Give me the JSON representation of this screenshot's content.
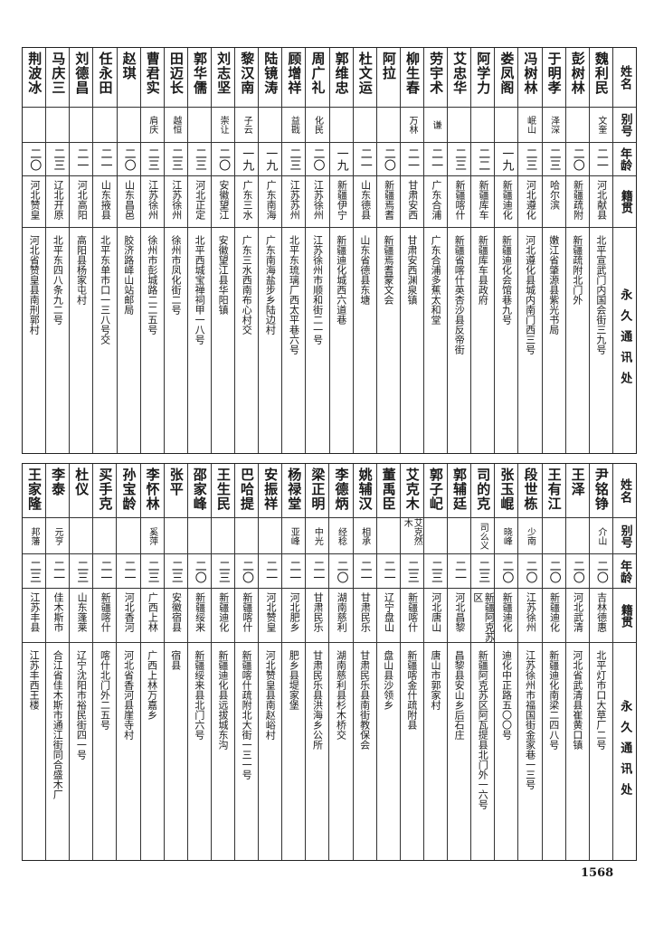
{
  "headers": {
    "name": "姓名",
    "alias": "别号",
    "age": "年龄",
    "native": "籍贯",
    "address": "永久通讯处"
  },
  "top_table": [
    {
      "name": "魏利民",
      "alias": "文奎",
      "age": "二一",
      "native": "河北献县",
      "address": "北平宣武门内国会街三九号"
    },
    {
      "name": "彭树林",
      "alias": "",
      "age": "二〇",
      "native": "新疆疏附",
      "address": "新疆疏附北门外"
    },
    {
      "name": "于明孝",
      "alias": "泽深",
      "age": "二三",
      "native": "哈尔滨",
      "address": "嫩江省肇源县紫光书局"
    },
    {
      "name": "冯树林",
      "alias": "岷山",
      "age": "二三",
      "native": "河北遵化",
      "address": "河北遵化县城内南门西三号"
    },
    {
      "name": "娄凤阁",
      "alias": "",
      "age": "一九",
      "native": "新疆迪化",
      "address": "新疆迪化会馆巷九号"
    },
    {
      "name": "阿学力",
      "alias": "",
      "age": "二二",
      "native": "新疆库车",
      "address": "新疆库车县政府"
    },
    {
      "name": "艾忠华",
      "alias": "",
      "age": "二三",
      "native": "新疆喀什",
      "address": "新疆省喀什英杏沙县反帝街"
    },
    {
      "name": "劳宇术",
      "alias": "谦",
      "age": "二一",
      "native": "广东合浦",
      "address": "广东合浦多蕉太和堂"
    },
    {
      "name": "柳生春",
      "alias": "万林",
      "age": "二一",
      "native": "甘肃安西",
      "address": "甘肃安西渊泉镇"
    },
    {
      "name": "阿拉",
      "alias": "",
      "age": "二〇",
      "native": "新疆焉耆",
      "address": "新疆焉耆蒙文会"
    },
    {
      "name": "杜文运",
      "alias": "",
      "age": "二一",
      "native": "山东德县",
      "address": "山东省德县东塘"
    },
    {
      "name": "郭维忠",
      "alias": "",
      "age": "一九",
      "native": "新疆伊宁",
      "address": "新疆迪化城西六道巷"
    },
    {
      "name": "周广礼",
      "alias": "化民",
      "age": "二〇",
      "native": "江苏徐州",
      "address": "江苏徐州市顺和街二一号"
    },
    {
      "name": "顾增祥",
      "alias": "益戡",
      "age": "二三",
      "native": "江苏苏州",
      "address": "北平东琉璃厂西太平巷六号"
    },
    {
      "name": "陆镜涛",
      "alias": "",
      "age": "一九",
      "native": "广东南海",
      "address": "广东南海盐步乡陆边村"
    },
    {
      "name": "黎汉南",
      "alias": "子云",
      "age": "一九",
      "native": "广东三水",
      "address": "广东三水西南布心村交"
    },
    {
      "name": "刘志坚",
      "alias": "崇让",
      "age": "二〇",
      "native": "安徽望江",
      "address": "安徽望江县华阳镇"
    },
    {
      "name": "郭华儒",
      "alias": "",
      "age": "二三",
      "native": "河北正定",
      "address": "北平西城宝禅祠甲一八号"
    },
    {
      "name": "田迈长",
      "alias": "越恒",
      "age": "二三",
      "native": "江苏徐州",
      "address": "徐州市凤化街二号"
    },
    {
      "name": "曹君实",
      "alias": "肩庆",
      "age": "二三",
      "native": "江苏徐州",
      "address": "徐州市彭城路二二五号"
    },
    {
      "name": "赵琪",
      "alias": "",
      "age": "二〇",
      "native": "山东昌邑",
      "address": "胶济路峄山站邮局"
    },
    {
      "name": "任永田",
      "alias": "",
      "age": "二一",
      "native": "山东掖县",
      "address": "北平东单市口一三八号交"
    },
    {
      "name": "刘德昌",
      "alias": "",
      "age": "二一",
      "native": "河北高阳",
      "address": "高阳县杨家屯村"
    },
    {
      "name": "马庆三",
      "alias": "",
      "age": "二三",
      "native": "辽北开原",
      "address": "北平东四八条九二号"
    },
    {
      "name": "荆波冰",
      "alias": "",
      "age": "二〇",
      "native": "河北赞皇",
      "address": "河北省赞皇县南刑郭村"
    }
  ],
  "bottom_table": [
    {
      "name": "尹铭铮",
      "alias": "介山",
      "age": "二〇",
      "native": "吉林德惠",
      "address": "北平灯市口大草厂二号"
    },
    {
      "name": "王泽",
      "alias": "",
      "age": "二〇",
      "native": "河北武清",
      "address": "河北省武清县崔黄口镇"
    },
    {
      "name": "王有江",
      "alias": "",
      "age": "二〇",
      "native": "新疆迪化",
      "address": "新疆迪化南梁二四八号"
    },
    {
      "name": "段世栋",
      "alias": "少南",
      "age": "二〇",
      "native": "江苏徐州",
      "address": "江苏徐州市福国街金家巷一三号"
    },
    {
      "name": "张玉崐",
      "alias": "晓峰",
      "age": "二〇",
      "native": "新疆迪化",
      "address": "迪化中正路五〇〇号"
    },
    {
      "name": "司的克",
      "alias": "司么义",
      "age": "二三",
      "native": "新疆阿克苏区",
      "address": "新疆阿克苏区阿瓦提县北门外一六号"
    },
    {
      "name": "郭辅廷",
      "alias": "",
      "age": "二一",
      "native": "河北昌黎",
      "address": "昌黎县安山乡后石庄"
    },
    {
      "name": "郭子屺",
      "alias": "",
      "age": "二三",
      "native": "河北唐山",
      "address": "唐山市郭家村"
    },
    {
      "name": "艾克木",
      "alias": "艾克然木",
      "age": "二三",
      "native": "新疆喀什",
      "address": "新疆喀金什疏附县"
    },
    {
      "name": "董禹臣",
      "alias": "",
      "age": "二一",
      "native": "辽宁盘山",
      "address": "盘山县沙领乡"
    },
    {
      "name": "姚辅汉",
      "alias": "相承",
      "age": "二一",
      "native": "甘肃民乐",
      "address": "甘肃民乐县南街教保会"
    },
    {
      "name": "李德炳",
      "alias": "经稔",
      "age": "二〇",
      "native": "湖南慈利",
      "address": "湖南慈利县杉木桥交"
    },
    {
      "name": "梁正明",
      "alias": "中光",
      "age": "二一",
      "native": "甘肃民乐",
      "address": "甘肃民乐县洪海乡公所"
    },
    {
      "name": "杨禄堂",
      "alias": "亚峰",
      "age": "二一",
      "native": "河北肥乡",
      "address": "肥乡县堤家堡"
    },
    {
      "name": "安振祥",
      "alias": "",
      "age": "二一",
      "native": "河北赞皇",
      "address": "河北赞皇县南赵峪村"
    },
    {
      "name": "巴哈提",
      "alias": "",
      "age": "二〇",
      "native": "新疆喀什",
      "address": "新疆喀什疏附北大街一三一号"
    },
    {
      "name": "王生民",
      "alias": "",
      "age": "二三",
      "native": "新疆迪化",
      "address": "新疆迪化县远拔城东沟"
    },
    {
      "name": "邵家峰",
      "alias": "",
      "age": "二〇",
      "native": "新疆绥来",
      "address": "新疆绥来县北门六号"
    },
    {
      "name": "张平",
      "alias": "",
      "age": "二三",
      "native": "安徽宿县",
      "address": "宿县"
    },
    {
      "name": "李怀林",
      "alias": "奚萍",
      "age": "二三",
      "native": "广西上林",
      "address": "广西上林万嘉乡"
    },
    {
      "name": "孙宝龄",
      "alias": "",
      "age": "二一",
      "native": "河北香河",
      "address": "河北省香河县崖寺村"
    },
    {
      "name": "买手克",
      "alias": "",
      "age": "二一",
      "native": "新疆喀什",
      "address": "喀什北门外二五号"
    },
    {
      "name": "杜仪",
      "alias": "",
      "age": "二三",
      "native": "山东蓬莱",
      "address": "辽宁沈阳市裕民街四一号"
    },
    {
      "name": "李泰",
      "alias": "元亨",
      "age": "二一",
      "native": "佳木斯市",
      "address": "合江省佳木斯市通江街同合盛木厂"
    },
    {
      "name": "王家隆",
      "alias": "邦藩",
      "age": "二三",
      "native": "江苏丰县",
      "address": "江苏丰西王楼"
    }
  ],
  "page_number": "1568"
}
